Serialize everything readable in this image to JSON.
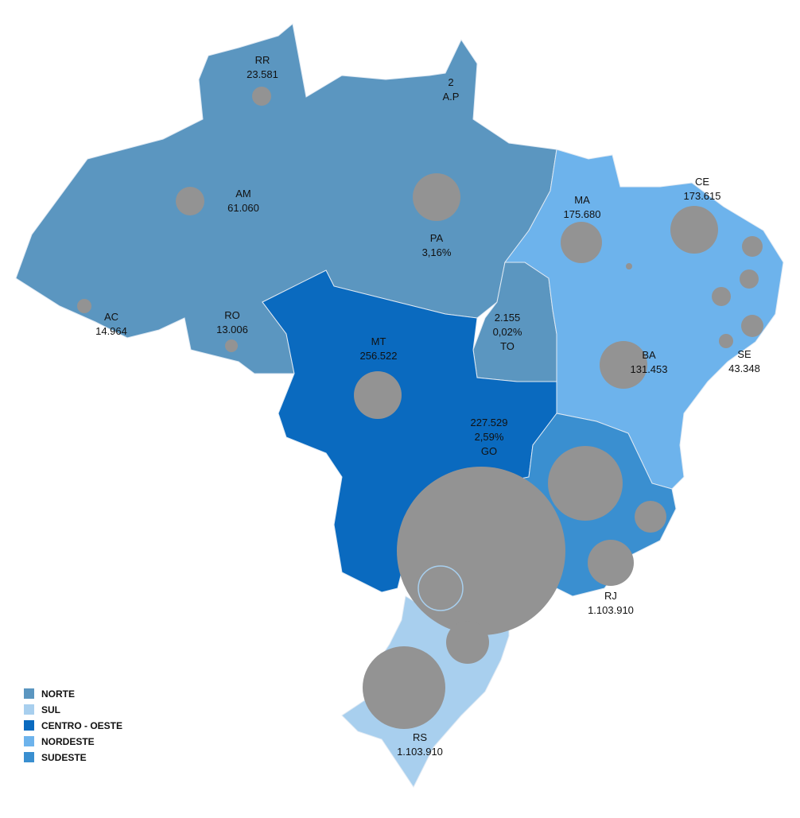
{
  "map": {
    "states": [
      {
        "lines": [
          "RR",
          "23.581"
        ]
      },
      {
        "lines": [
          "2",
          "A.P"
        ]
      },
      {
        "lines": [
          "AM",
          "61.060"
        ]
      },
      {
        "lines": [
          "PA",
          "3,16%"
        ]
      },
      {
        "lines": [
          "MA",
          "175.680"
        ]
      },
      {
        "lines": [
          "CE",
          "173.615"
        ]
      },
      {
        "lines": [
          "AC",
          "14.964"
        ]
      },
      {
        "lines": [
          "RO",
          "13.006"
        ]
      },
      {
        "lines": [
          "2.155",
          "0,02%",
          "TO"
        ]
      },
      {
        "lines": [
          "MT",
          "256.522"
        ]
      },
      {
        "lines": [
          "BA",
          "131.453"
        ]
      },
      {
        "lines": [
          "SE",
          "43.348"
        ]
      },
      {
        "lines": [
          "227.529",
          "2,59%",
          "GO"
        ]
      },
      {
        "lines": [
          "RJ",
          "1.103.910"
        ]
      },
      {
        "lines": [
          "RS",
          "1.103.910"
        ]
      }
    ],
    "legend": [
      "NORTE",
      "SUL",
      "CENTRO - OESTE",
      "NORDESTE",
      "SUDESTE"
    ]
  }
}
